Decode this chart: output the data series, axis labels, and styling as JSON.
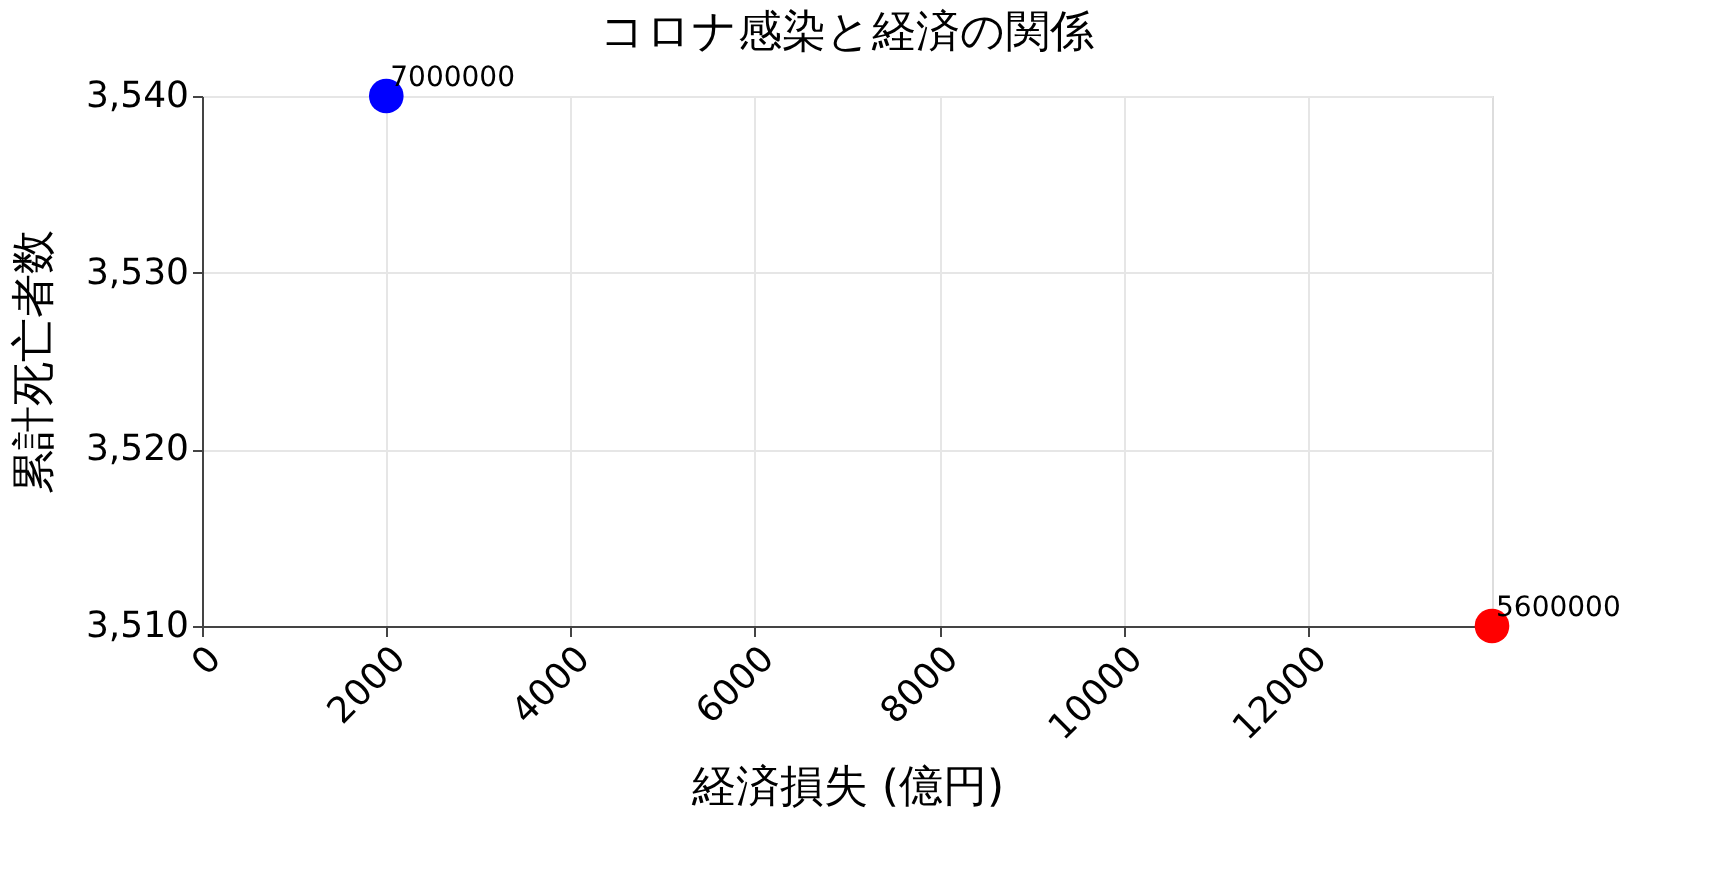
{
  "chart_data": {
    "type": "scatter",
    "title": "コロナ感染と経済の関係",
    "xlabel": "経済損失 (億円)",
    "ylabel": "累計死亡者数",
    "x": [
      2000,
      14000
    ],
    "values": [
      3540,
      3510
    ],
    "colors": [
      "#0000ff",
      "#ff0000"
    ],
    "annotations": [
      {
        "text": "7000000",
        "x": 2000,
        "y": 3540
      },
      {
        "text": "5600000",
        "x": 14000,
        "y": 3510
      }
    ],
    "xlim": [
      0,
      14000
    ],
    "xticks": [
      0,
      2000,
      4000,
      6000,
      8000,
      10000,
      12000
    ],
    "ylim": [
      3510,
      3540
    ],
    "yticks": [
      {
        "value": 3510,
        "label": "3,510"
      },
      {
        "value": 3520,
        "label": "3,520"
      },
      {
        "value": 3530,
        "label": "3,530"
      },
      {
        "value": 3540,
        "label": "3,540"
      }
    ],
    "grid": true,
    "marker": "circle"
  }
}
